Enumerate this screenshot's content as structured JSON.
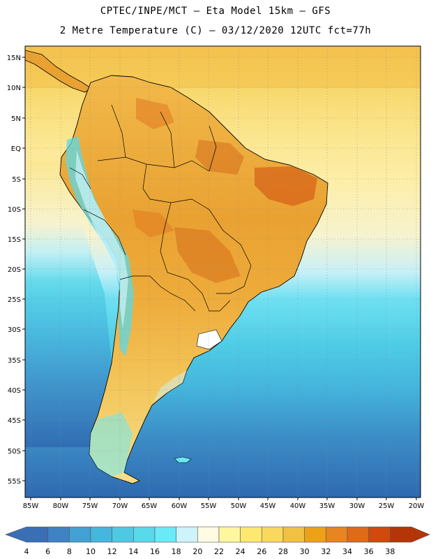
{
  "header": {
    "line1": "CPTEC/INPE/MCT –  Eta Model 15km – GFS",
    "line2": "2 Metre Temperature (C) – 03/12/2020 12UTC fct=77h"
  },
  "map": {
    "lat_labels": [
      "15N",
      "10N",
      "5N",
      "EQ",
      "5S",
      "10S",
      "15S",
      "20S",
      "25S",
      "30S",
      "35S",
      "40S",
      "45S",
      "50S",
      "55S"
    ],
    "lon_labels": [
      "85W",
      "80W",
      "75W",
      "70W",
      "65W",
      "60W",
      "55W",
      "50W",
      "45W",
      "40W",
      "35W",
      "30W",
      "25W",
      "20W"
    ]
  },
  "colorbar": {
    "levels": [
      "4",
      "6",
      "8",
      "10",
      "12",
      "14",
      "16",
      "18",
      "20",
      "22",
      "24",
      "26",
      "28",
      "30",
      "32",
      "34",
      "36",
      "38"
    ],
    "colors": [
      "#3a6fb5",
      "#3f82c4",
      "#43a0d2",
      "#47b6de",
      "#4fc8e3",
      "#59d8ea",
      "#6aeaf7",
      "#cdf3fb",
      "#fffbe2",
      "#fff7a0",
      "#fde870",
      "#f9d85e",
      "#f1c144",
      "#eca218",
      "#e78521",
      "#df6a1a",
      "#cf4a0c",
      "#b43608"
    ]
  },
  "colors": {
    "ocean_north": "#fbe38a",
    "ocean_tropical": "#f8da6c",
    "land_base": "#ecae3a",
    "land_hot": "#d66d1c",
    "ocean_cool": "#4cd0e8",
    "ocean_cold": "#3f8fc9",
    "ocean_deep": "#2f6cb3"
  }
}
